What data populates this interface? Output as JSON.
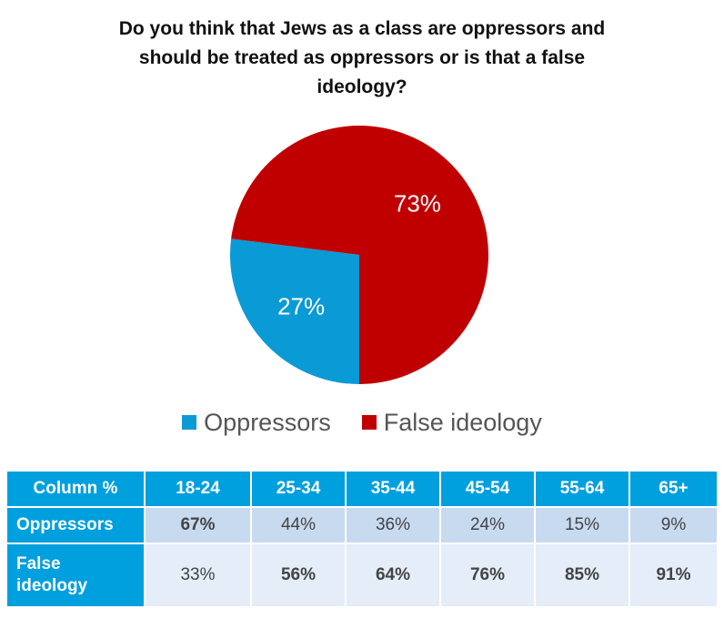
{
  "chart_data": {
    "type": "pie",
    "title_lines": [
      "Do you think that Jews as a class are oppressors and",
      "should be treated as oppressors or is that a false",
      "ideology?"
    ],
    "slices": [
      {
        "name": "Oppressors",
        "value": 27,
        "label": "27%",
        "color": "#0a9ad6"
      },
      {
        "name": "False ideology",
        "value": 73,
        "label": "73%",
        "color": "#c00000"
      }
    ],
    "legend": [
      "Oppressors",
      "False ideology"
    ],
    "legend_placement": "bottom"
  },
  "table": {
    "header": [
      "Column %",
      "18-24",
      "25-34",
      "35-44",
      "45-54",
      "55-64",
      "65+"
    ],
    "rows": [
      {
        "label": "Oppressors",
        "values": [
          "67%",
          "44%",
          "36%",
          "24%",
          "15%",
          "9%"
        ],
        "bold": [
          true,
          false,
          false,
          false,
          false,
          false
        ]
      },
      {
        "label_lines": [
          "False",
          "ideology"
        ],
        "values": [
          "33%",
          "56%",
          "64%",
          "76%",
          "85%",
          "91%"
        ],
        "bold": [
          false,
          true,
          true,
          true,
          true,
          true
        ]
      }
    ]
  },
  "colors": {
    "header_bg": "#009fde",
    "row1_bg": "#c8daf0",
    "row2_bg": "#e4edf8"
  }
}
